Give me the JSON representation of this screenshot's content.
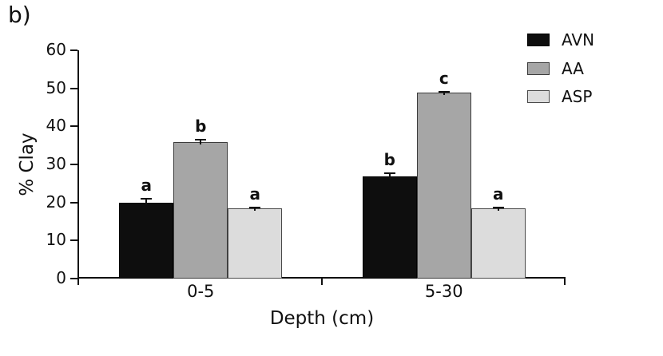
{
  "figure_label": "b)",
  "chart_data": {
    "type": "bar",
    "title": "",
    "xlabel": "Depth (cm)",
    "ylabel": "% Clay",
    "categories": [
      "0-5",
      "5-30"
    ],
    "y_ticks": [
      0,
      10,
      20,
      30,
      40,
      50,
      60
    ],
    "ylim": [
      0,
      60
    ],
    "grid": false,
    "legend_position": "top-right",
    "series": [
      {
        "name": "AVN",
        "color": "#0e0e0e",
        "border_color": "#000000",
        "values": [
          20.0,
          26.9
        ],
        "errors": [
          1.0,
          0.7
        ],
        "sig_letters": [
          "a",
          "b"
        ]
      },
      {
        "name": "AA",
        "color": "#a6a6a6",
        "border_color": "#3c3c3c",
        "values": [
          35.9,
          48.9
        ],
        "errors": [
          0.6,
          0.2
        ],
        "sig_letters": [
          "b",
          "c"
        ]
      },
      {
        "name": "ASP",
        "color": "#dcdcdc",
        "border_color": "#4a4a4a",
        "values": [
          18.4,
          18.4
        ],
        "errors": [
          0.2,
          0.3
        ],
        "sig_letters": [
          "a",
          "a"
        ]
      }
    ]
  }
}
